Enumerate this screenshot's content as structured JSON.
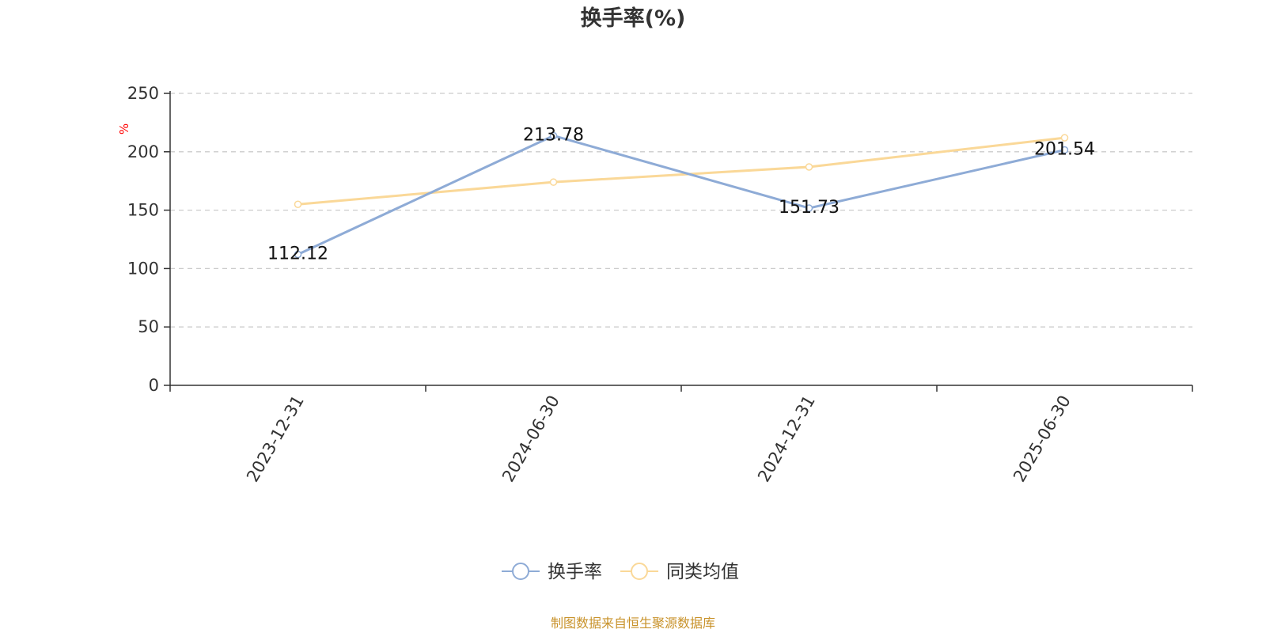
{
  "chart_data": {
    "type": "line",
    "title": "换手率(%)",
    "ylabel": "%",
    "xlabel": "",
    "categories": [
      "2023-12-31",
      "2024-06-30",
      "2024-12-31",
      "2025-06-30"
    ],
    "ylim": [
      0,
      250
    ],
    "yticks": [
      0,
      50,
      100,
      150,
      200,
      250
    ],
    "grid": true,
    "legend_position": "bottom-center",
    "series": [
      {
        "name": "换手率",
        "values": [
          112.12,
          213.78,
          151.73,
          201.54
        ],
        "color": "#8eabd6",
        "labels": [
          "112.12",
          "213.78",
          "151.73",
          "201.54"
        ]
      },
      {
        "name": "同类均值",
        "values": [
          155.0,
          174.0,
          187.0,
          212.0
        ],
        "color": "#fad898"
      }
    ]
  },
  "footer": {
    "source_text": "制图数据来自恒生聚源数据库",
    "source_color": "#c8922a"
  },
  "colors": {
    "axis": "#333333",
    "grid": "#cccccc",
    "unit_label": "#ff0000"
  }
}
